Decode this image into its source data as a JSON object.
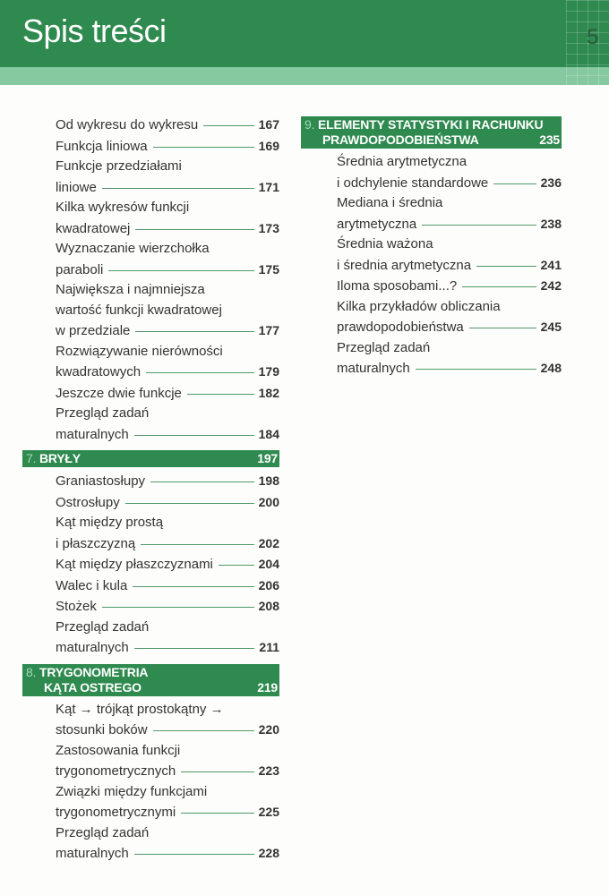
{
  "header": {
    "title": "Spis treści",
    "page_number": "5"
  },
  "colors": {
    "green": "#2f8a50",
    "light_green": "#86c9a0"
  },
  "left_column": {
    "intro_entries": [
      {
        "lines": [
          "Od wykresu do wykresu"
        ],
        "page": "167"
      },
      {
        "lines": [
          "Funkcja liniowa"
        ],
        "page": "169"
      },
      {
        "lines": [
          "Funkcje przedziałami",
          "liniowe"
        ],
        "page": "171"
      },
      {
        "lines": [
          "Kilka wykresów funkcji",
          "kwadratowej"
        ],
        "page": "173"
      },
      {
        "lines": [
          "Wyznaczanie wierzchołka",
          "paraboli"
        ],
        "page": "175"
      },
      {
        "lines": [
          "Największa i najmniejsza",
          "wartość funkcji kwadratowej",
          "w przedziale"
        ],
        "page": "177"
      },
      {
        "lines": [
          "Rozwiązywanie nierówności",
          "kwadratowych"
        ],
        "page": "179"
      },
      {
        "lines": [
          "Jeszcze dwie funkcje"
        ],
        "page": "182"
      },
      {
        "lines": [
          "Przegląd zadań",
          "maturalnych"
        ],
        "page": "184"
      }
    ],
    "sections": [
      {
        "number": "7.",
        "title_lines": [
          "BRYŁY"
        ],
        "page": "197",
        "entries": [
          {
            "lines": [
              "Graniastosłupy"
            ],
            "page": "198"
          },
          {
            "lines": [
              "Ostrosłupy"
            ],
            "page": "200"
          },
          {
            "lines": [
              "Kąt między prostą",
              "i płaszczyzną"
            ],
            "page": "202"
          },
          {
            "lines": [
              "Kąt między płaszczyznami"
            ],
            "page": "204"
          },
          {
            "lines": [
              "Walec i kula"
            ],
            "page": "206"
          },
          {
            "lines": [
              "Stożek"
            ],
            "page": "208"
          },
          {
            "lines": [
              "Przegląd zadań",
              "maturalnych"
            ],
            "page": "211"
          }
        ]
      },
      {
        "number": "8.",
        "title_lines": [
          "TRYGONOMETRIA",
          "KĄTA OSTREGO"
        ],
        "page": "219",
        "entries": [
          {
            "lines": [
              "Kąt → trójkąt prostokątny →",
              "stosunki boków"
            ],
            "page": "220"
          },
          {
            "lines": [
              "Zastosowania funkcji",
              "trygonometrycznych"
            ],
            "page": "223"
          },
          {
            "lines": [
              "Związki między funkcjami",
              "trygonometrycznymi"
            ],
            "page": "225"
          },
          {
            "lines": [
              "Przegląd zadań",
              "maturalnych"
            ],
            "page": "228"
          }
        ]
      }
    ]
  },
  "right_column": {
    "sections": [
      {
        "number": "9.",
        "title_lines": [
          "ELEMENTY STATYSTYKI I RACHUNKU",
          "PRAWDOPODOBIEŃSTWA"
        ],
        "page": "235",
        "entries": [
          {
            "lines": [
              "Średnia arytmetyczna",
              "i odchylenie standardowe"
            ],
            "page": "236"
          },
          {
            "lines": [
              "Mediana i średnia",
              "arytmetyczna"
            ],
            "page": "238"
          },
          {
            "lines": [
              "Średnia ważona",
              "i średnia arytmetyczna"
            ],
            "page": "241"
          },
          {
            "lines": [
              "Iloma sposobami...?"
            ],
            "page": "242"
          },
          {
            "lines": [
              "Kilka przykładów obliczania",
              "prawdopodobieństwa"
            ],
            "page": "245"
          },
          {
            "lines": [
              "Przegląd zadań",
              "maturalnych"
            ],
            "page": "248"
          }
        ]
      }
    ]
  }
}
